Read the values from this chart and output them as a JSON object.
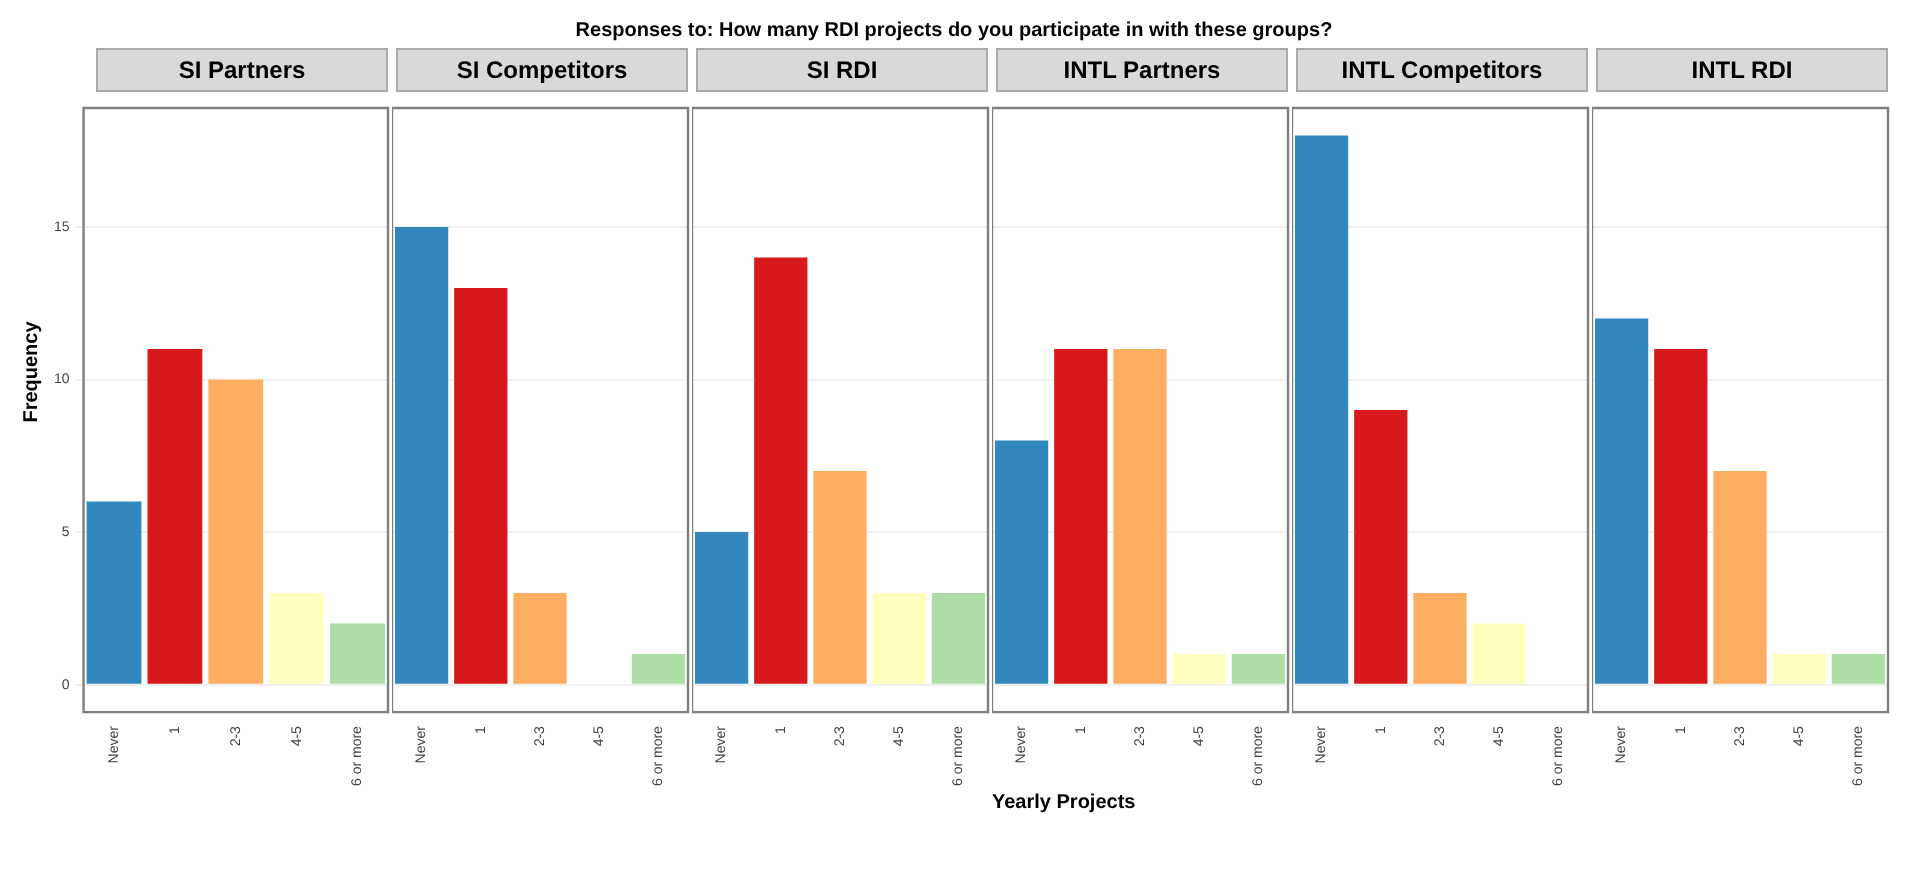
{
  "chart_data": [
    {
      "type": "bar",
      "title": "SI Partners",
      "ylabel": "Frequency",
      "annotations": [
        "Responses to: How many RDI projects do you participate in with these groups?"
      ],
      "categories": [
        "Never",
        "1",
        "2-3",
        "4-5",
        "6 or more"
      ],
      "values": [
        6,
        11,
        10,
        3,
        2
      ],
      "colors": [
        "#3288bd",
        "#d7191c",
        "#fdae61",
        "#ffffbf",
        "#abdda4"
      ],
      "ylim": [
        -0.9,
        18.9
      ],
      "yticks": [
        0,
        5,
        10,
        15
      ],
      "grid": "y",
      "legend": false
    },
    {
      "type": "bar",
      "title": "SI Competitors",
      "categories": [
        "Never",
        "1",
        "2-3",
        "4-5",
        "6 or more"
      ],
      "values": [
        15,
        13,
        3,
        0,
        1
      ],
      "colors": [
        "#3288bd",
        "#d7191c",
        "#fdae61",
        "#ffffbf",
        "#abdda4"
      ],
      "ylim": [
        -0.9,
        18.9
      ],
      "yticks": [
        0,
        5,
        10,
        15
      ],
      "grid": "y",
      "legend": false,
      "tick_labels": "x"
    },
    {
      "type": "bar",
      "title": "SI RDI",
      "categories": [
        "Never",
        "1",
        "2-3",
        "4-5",
        "6 or more"
      ],
      "values": [
        5,
        14,
        7,
        3,
        3
      ],
      "colors": [
        "#3288bd",
        "#d7191c",
        "#fdae61",
        "#ffffbf",
        "#abdda4"
      ],
      "ylim": [
        -0.9,
        18.9
      ],
      "yticks": [
        0,
        5,
        10,
        15
      ],
      "grid": "y",
      "legend": false,
      "tick_labels": "x"
    },
    {
      "type": "bar",
      "title": "INTL Partners",
      "xlabel": "Yearly Projects",
      "categories": [
        "Never",
        "1",
        "2-3",
        "4-5",
        "6 or more"
      ],
      "values": [
        8,
        11,
        11,
        1,
        1
      ],
      "colors": [
        "#3288bd",
        "#d7191c",
        "#fdae61",
        "#ffffbf",
        "#abdda4"
      ],
      "ylim": [
        -0.9,
        18.9
      ],
      "yticks": [
        0,
        5,
        10,
        15
      ],
      "grid": "y",
      "legend": false,
      "tick_labels": "x"
    },
    {
      "type": "bar",
      "title": "INTL Competitors",
      "categories": [
        "Never",
        "1",
        "2-3",
        "4-5",
        "6 or more"
      ],
      "values": [
        18,
        9,
        3,
        2,
        0
      ],
      "colors": [
        "#3288bd",
        "#d7191c",
        "#fdae61",
        "#ffffbf",
        "#abdda4"
      ],
      "ylim": [
        -0.9,
        18.9
      ],
      "yticks": [
        0,
        5,
        10,
        15
      ],
      "grid": "y",
      "legend": false,
      "tick_labels": "x"
    },
    {
      "type": "bar",
      "title": "INTL RDI",
      "categories": [
        "Never",
        "1",
        "2-3",
        "4-5",
        "6 or more"
      ],
      "values": [
        12,
        11,
        7,
        1,
        1
      ],
      "colors": [
        "#3288bd",
        "#d7191c",
        "#fdae61",
        "#ffffbf",
        "#abdda4"
      ],
      "ylim": [
        -0.9,
        18.9
      ],
      "yticks": [
        0,
        5,
        10,
        15
      ],
      "grid": "y",
      "legend": false,
      "tick_labels": "x"
    }
  ]
}
